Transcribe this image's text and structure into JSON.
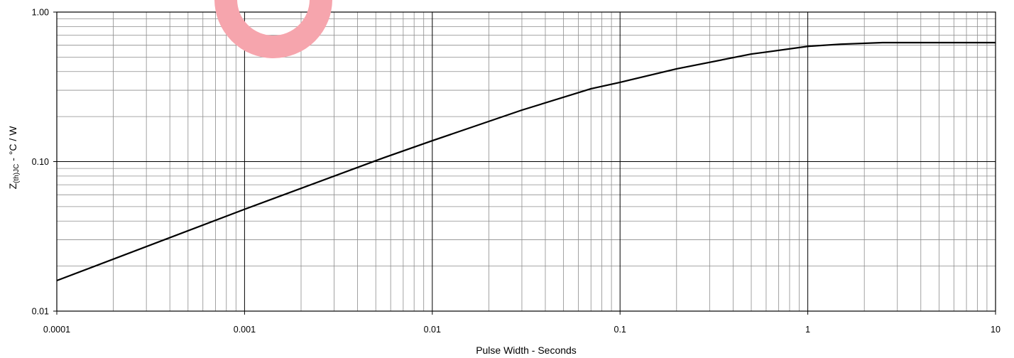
{
  "chart_data": {
    "type": "line",
    "xlabel": "Pulse Width - Seconds",
    "ylabel": {
      "main": "Z",
      "subscript": "(th)JC",
      "suffix": " - °C / W"
    },
    "x_scale": "log",
    "y_scale": "log",
    "xlim": [
      0.0001,
      10
    ],
    "ylim": [
      0.01,
      1
    ],
    "x_ticks": [
      {
        "value": 0.0001,
        "label": "0.0001"
      },
      {
        "value": 0.001,
        "label": "0.001"
      },
      {
        "value": 0.01,
        "label": "0.01"
      },
      {
        "value": 0.1,
        "label": "0.1"
      },
      {
        "value": 1,
        "label": "1"
      },
      {
        "value": 10,
        "label": "10"
      }
    ],
    "y_ticks": [
      {
        "value": 1,
        "label": "1.00"
      },
      {
        "value": 0.1,
        "label": "0.10"
      },
      {
        "value": 0.01,
        "label": "0.01"
      }
    ],
    "grid": {
      "major": true,
      "minor": true
    },
    "series": [
      {
        "x": [
          0.0001,
          0.001,
          0.0055,
          0.01,
          0.03,
          0.07,
          0.1,
          0.2,
          0.5,
          0.6,
          1,
          1.5,
          2.5,
          10
        ],
        "y": [
          0.016,
          0.048,
          0.106,
          0.138,
          0.221,
          0.307,
          0.339,
          0.417,
          0.524,
          0.54,
          0.59,
          0.61,
          0.625,
          0.625
        ]
      }
    ]
  },
  "colors": {
    "series": "#000000",
    "major_grid": "#000000",
    "minor_grid": "#8c8c8c",
    "border": "#000000",
    "watermark": "#f6a5ad"
  }
}
